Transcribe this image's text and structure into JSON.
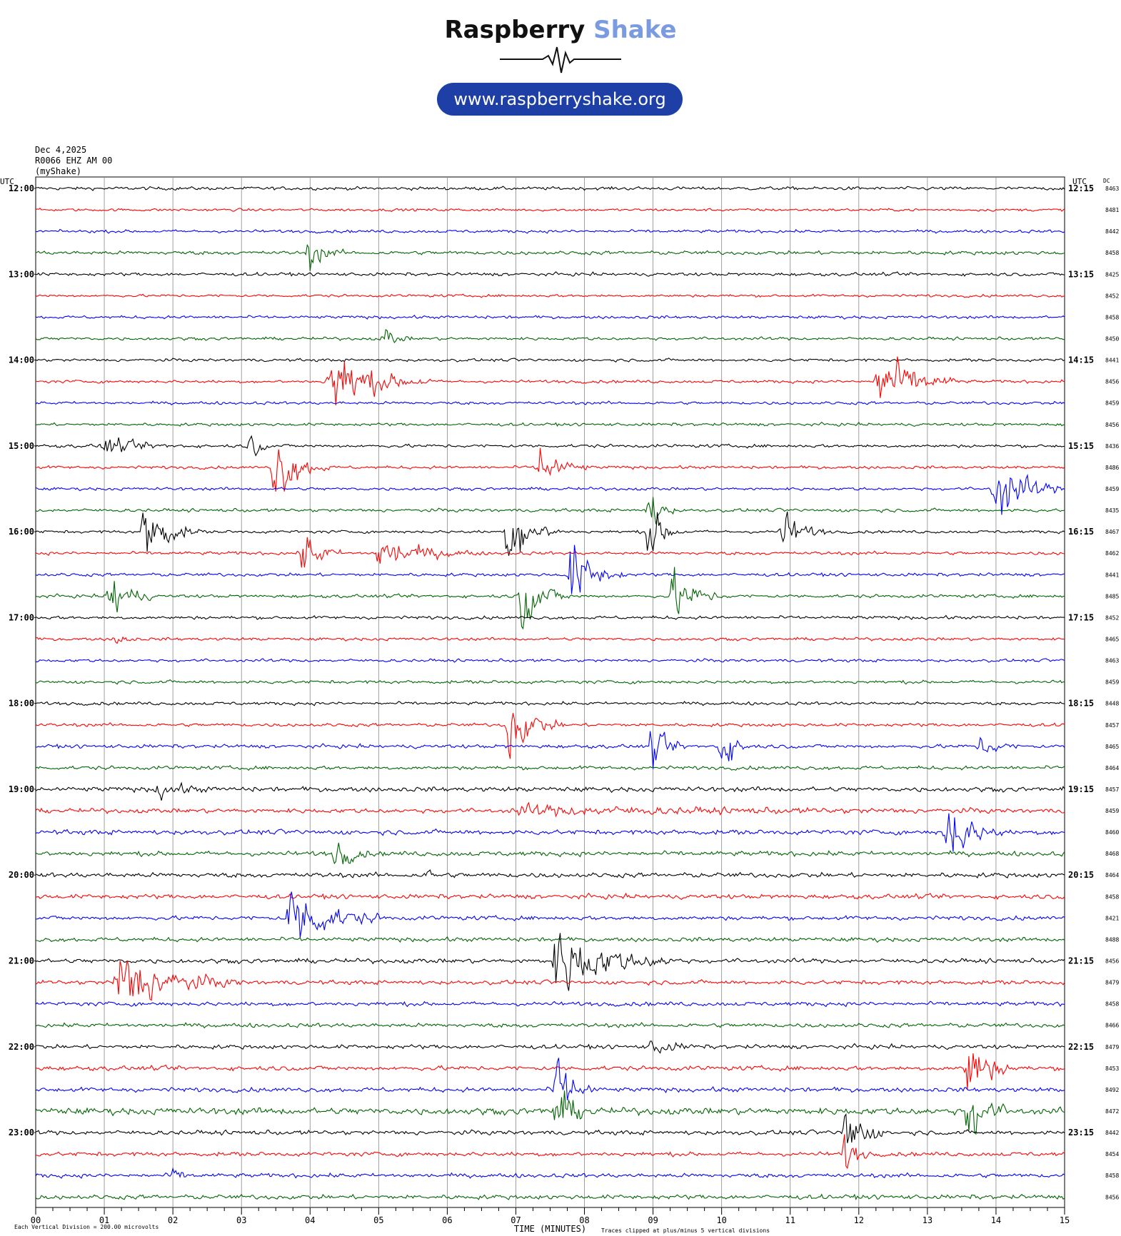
{
  "logo": {
    "brand_primary": "Raspberry",
    "brand_accent": "Shake",
    "url": "www.raspberryshake.org",
    "accent_color": "#7b9be0",
    "pill_color": "#1e3fa6"
  },
  "header": {
    "date": "Dec 4,2025",
    "station": "R0066 EHZ AM 00",
    "source": "(myShake)"
  },
  "chart_data": {
    "type": "line",
    "title": "",
    "xlabel": "TIME (MINUTES)",
    "x_range": [
      0,
      15
    ],
    "x_ticks": [
      "00",
      "01",
      "02",
      "03",
      "04",
      "05",
      "06",
      "07",
      "08",
      "09",
      "10",
      "11",
      "12",
      "13",
      "14",
      "15"
    ],
    "left_axis_title": "UTC",
    "right_axis_title": "UTC",
    "dc_title": "DC",
    "left_labels": [
      "12:00",
      "13:00",
      "14:00",
      "15:00",
      "16:00",
      "17:00",
      "18:00",
      "19:00",
      "20:00",
      "21:00",
      "22:00",
      "23:00"
    ],
    "right_labels": [
      "12:15",
      "13:15",
      "14:15",
      "15:15",
      "16:15",
      "17:15",
      "18:15",
      "19:15",
      "20:15",
      "21:15",
      "22:15",
      "23:15"
    ],
    "trace_colors": [
      "#000000",
      "#ff0000",
      "#0000ff",
      "#006400"
    ],
    "dc_values": [
      8463,
      8481,
      8442,
      8458,
      8425,
      8452,
      8458,
      8450,
      8441,
      8456,
      8459,
      8456,
      8436,
      8486,
      8459,
      8435,
      8467,
      8462,
      8441,
      8485,
      8452,
      8465,
      8463,
      8459,
      8448,
      8457,
      8465,
      8464,
      8457,
      8459,
      8460,
      8468,
      8464,
      8458,
      8421,
      8488,
      8456,
      8479,
      8458,
      8466,
      8479,
      8453,
      8492,
      8472,
      8442,
      8454,
      8458,
      8456
    ],
    "noise_level": [
      0.22,
      0.18,
      0.2,
      0.25,
      0.22,
      0.18,
      0.2,
      0.2,
      0.2,
      0.2,
      0.2,
      0.2,
      0.22,
      0.2,
      0.2,
      0.22,
      0.2,
      0.22,
      0.22,
      0.22,
      0.22,
      0.2,
      0.2,
      0.22,
      0.22,
      0.22,
      0.25,
      0.25,
      0.32,
      0.3,
      0.32,
      0.32,
      0.32,
      0.3,
      0.28,
      0.28,
      0.3,
      0.28,
      0.28,
      0.28,
      0.28,
      0.3,
      0.3,
      0.45,
      0.3,
      0.28,
      0.28,
      0.3
    ],
    "events": [
      {
        "trace": 3,
        "minute": 4.0,
        "duration": 0.5,
        "amplitude": 2.2
      },
      {
        "trace": 7,
        "minute": 5.1,
        "duration": 0.4,
        "amplitude": 1.5
      },
      {
        "trace": 9,
        "minute": 4.3,
        "duration": 1.5,
        "amplitude": 5.0
      },
      {
        "trace": 9,
        "minute": 12.3,
        "duration": 1.2,
        "amplitude": 5.0
      },
      {
        "trace": 12,
        "minute": 1.0,
        "duration": 1.2,
        "amplitude": 1.2
      },
      {
        "trace": 12,
        "minute": 3.15,
        "duration": 0.3,
        "amplitude": 2.0
      },
      {
        "trace": 13,
        "minute": 3.5,
        "duration": 0.8,
        "amplitude": 5.0
      },
      {
        "trace": 13,
        "minute": 7.35,
        "duration": 0.7,
        "amplitude": 3.5
      },
      {
        "trace": 14,
        "minute": 14.0,
        "duration": 1.0,
        "amplitude": 5.0
      },
      {
        "trace": 15,
        "minute": 8.95,
        "duration": 0.4,
        "amplitude": 3.5
      },
      {
        "trace": 16,
        "minute": 1.6,
        "duration": 0.8,
        "amplitude": 5.0
      },
      {
        "trace": 16,
        "minute": 6.9,
        "duration": 0.8,
        "amplitude": 5.0
      },
      {
        "trace": 16,
        "minute": 8.95,
        "duration": 0.5,
        "amplitude": 4.5
      },
      {
        "trace": 16,
        "minute": 10.9,
        "duration": 0.7,
        "amplitude": 3.0
      },
      {
        "trace": 17,
        "minute": 3.9,
        "duration": 0.6,
        "amplitude": 3.5
      },
      {
        "trace": 17,
        "minute": 5.0,
        "duration": 1.5,
        "amplitude": 2.5
      },
      {
        "trace": 18,
        "minute": 7.8,
        "duration": 0.8,
        "amplitude": 5.0
      },
      {
        "trace": 19,
        "minute": 1.1,
        "duration": 0.6,
        "amplitude": 4.5
      },
      {
        "trace": 19,
        "minute": 7.1,
        "duration": 0.7,
        "amplitude": 5.0
      },
      {
        "trace": 19,
        "minute": 9.3,
        "duration": 0.8,
        "amplitude": 3.5
      },
      {
        "trace": 21,
        "minute": 1.2,
        "duration": 0.3,
        "amplitude": 1.0
      },
      {
        "trace": 25,
        "minute": 6.9,
        "duration": 0.8,
        "amplitude": 5.0
      },
      {
        "trace": 26,
        "minute": 9.0,
        "duration": 0.5,
        "amplitude": 3.0
      },
      {
        "trace": 26,
        "minute": 10.0,
        "duration": 0.5,
        "amplitude": 3.5
      },
      {
        "trace": 26,
        "minute": 13.8,
        "duration": 0.5,
        "amplitude": 2.0
      },
      {
        "trace": 28,
        "minute": 1.8,
        "duration": 0.8,
        "amplitude": 1.2
      },
      {
        "trace": 29,
        "minute": 7.0,
        "duration": 7.0,
        "amplitude": 0.6
      },
      {
        "trace": 30,
        "minute": 13.3,
        "duration": 0.8,
        "amplitude": 5.0
      },
      {
        "trace": 31,
        "minute": 4.4,
        "duration": 0.5,
        "amplitude": 2.5
      },
      {
        "trace": 32,
        "minute": 5.75,
        "duration": 0.15,
        "amplitude": 1.0
      },
      {
        "trace": 34,
        "minute": 3.7,
        "duration": 1.4,
        "amplitude": 5.0
      },
      {
        "trace": 36,
        "minute": 7.6,
        "duration": 1.8,
        "amplitude": 5.0
      },
      {
        "trace": 37,
        "minute": 1.2,
        "duration": 1.8,
        "amplitude": 5.0
      },
      {
        "trace": 40,
        "minute": 9.0,
        "duration": 0.7,
        "amplitude": 1.2
      },
      {
        "trace": 41,
        "minute": 13.6,
        "duration": 0.7,
        "amplitude": 5.0
      },
      {
        "trace": 42,
        "minute": 7.6,
        "duration": 0.6,
        "amplitude": 5.0
      },
      {
        "trace": 43,
        "minute": 7.6,
        "duration": 0.6,
        "amplitude": 3.5
      },
      {
        "trace": 43,
        "minute": 13.6,
        "duration": 0.6,
        "amplitude": 5.0
      },
      {
        "trace": 44,
        "minute": 11.8,
        "duration": 0.6,
        "amplitude": 5.0
      },
      {
        "trace": 45,
        "minute": 11.8,
        "duration": 0.4,
        "amplitude": 3.0
      },
      {
        "trace": 46,
        "minute": 2.0,
        "duration": 0.3,
        "amplitude": 1.0
      }
    ]
  },
  "footer": {
    "division_note": "Each Vertical Division =  200.00 microvolts",
    "clip_note": "Traces clipped at plus/minus 5 vertical divisions"
  }
}
